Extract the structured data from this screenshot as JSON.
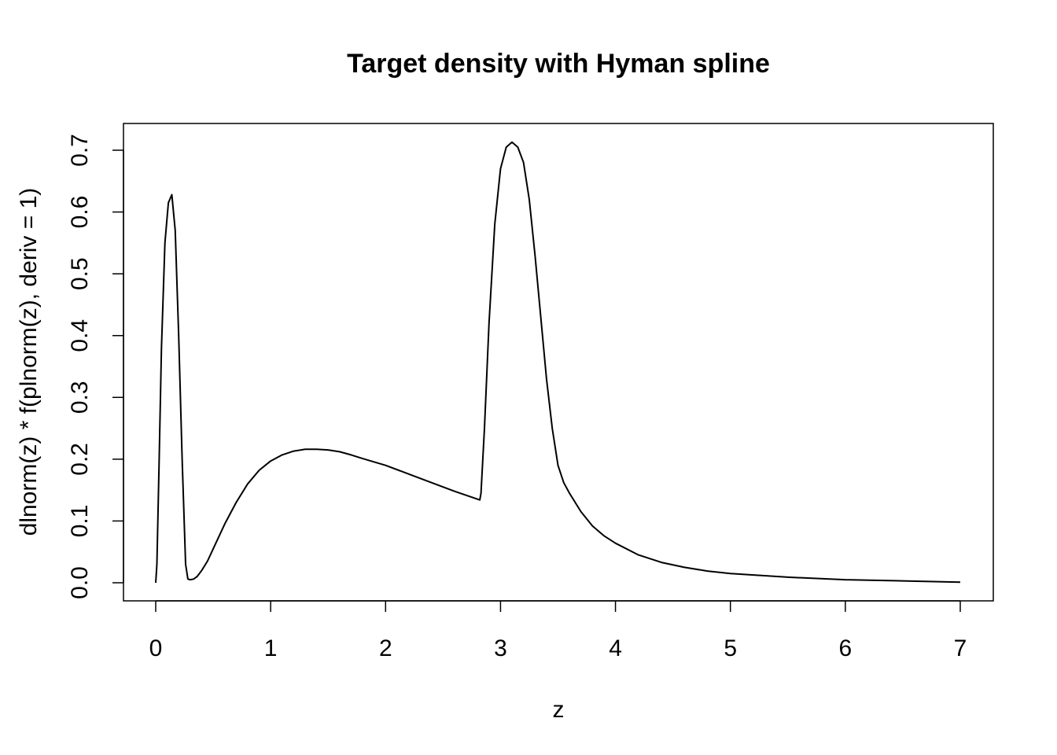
{
  "chart_data": {
    "type": "line",
    "title": "Target density with Hyman spline",
    "xlabel": "z",
    "ylabel": "dlnorm(z) * f(plnorm(z), deriv = 1)",
    "xlim": [
      0,
      7
    ],
    "ylim": [
      0,
      0.7
    ],
    "xticks": [
      "0",
      "1",
      "2",
      "3",
      "4",
      "5",
      "6",
      "7"
    ],
    "yticks": [
      "0.0",
      "0.1",
      "0.2",
      "0.3",
      "0.4",
      "0.5",
      "0.6",
      "0.7"
    ],
    "grid": false,
    "legend": "none",
    "line_color": "#000000",
    "series": [
      {
        "x": [
          0.0,
          0.01,
          0.03,
          0.05,
          0.08,
          0.11,
          0.14,
          0.17,
          0.2,
          0.23,
          0.26,
          0.28,
          0.3,
          0.33,
          0.36,
          0.4,
          0.45,
          0.5,
          0.6,
          0.7,
          0.8,
          0.9,
          1.0,
          1.1,
          1.2,
          1.3,
          1.4,
          1.5,
          1.6,
          1.7,
          1.8,
          2.0,
          2.2,
          2.4,
          2.6,
          2.82,
          2.83,
          2.86,
          2.9,
          2.95,
          3.0,
          3.05,
          3.1,
          3.15,
          3.2,
          3.25,
          3.3,
          3.35,
          3.4,
          3.45,
          3.5,
          3.55,
          3.6,
          3.7,
          3.8,
          3.9,
          4.0,
          4.2,
          4.4,
          4.6,
          4.8,
          5.0,
          5.5,
          6.0,
          6.5,
          7.0
        ],
        "y": [
          0.0,
          0.03,
          0.2,
          0.38,
          0.55,
          0.615,
          0.628,
          0.57,
          0.4,
          0.2,
          0.03,
          0.006,
          0.005,
          0.006,
          0.01,
          0.02,
          0.035,
          0.055,
          0.095,
          0.13,
          0.16,
          0.182,
          0.197,
          0.207,
          0.213,
          0.216,
          0.216,
          0.215,
          0.212,
          0.207,
          0.201,
          0.19,
          0.176,
          0.162,
          0.148,
          0.134,
          0.145,
          0.25,
          0.42,
          0.58,
          0.67,
          0.705,
          0.713,
          0.705,
          0.68,
          0.62,
          0.53,
          0.43,
          0.33,
          0.25,
          0.19,
          0.162,
          0.145,
          0.115,
          0.092,
          0.076,
          0.064,
          0.045,
          0.033,
          0.025,
          0.019,
          0.015,
          0.009,
          0.005,
          0.003,
          0.001
        ]
      }
    ]
  }
}
